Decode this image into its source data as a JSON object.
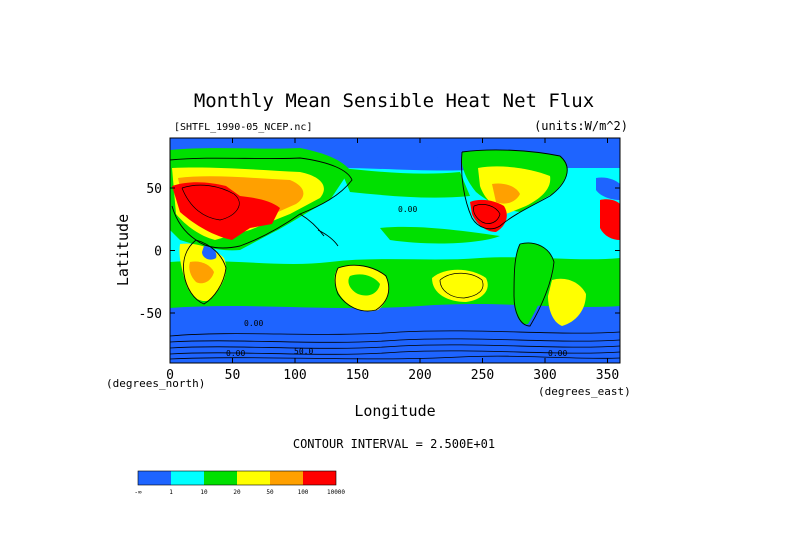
{
  "chart_data": {
    "type": "heatmap",
    "title": "Monthly Mean Sensible Heat Net Flux",
    "subtitle_left": "[SHTFL_1990-05_NCEP.nc]",
    "subtitle_right": "(units:W/m^2)",
    "xlabel": "Longitude",
    "ylabel": "Latitude",
    "x_unit_note": "(degrees_east)",
    "y_unit_note": "(degrees_north)",
    "xlim": [
      0,
      360
    ],
    "ylim": [
      -90,
      90
    ],
    "x_ticks": [
      "0",
      "50",
      "100",
      "150",
      "200",
      "250",
      "300",
      "350"
    ],
    "x_tick_values": [
      0,
      50,
      100,
      150,
      200,
      250,
      300,
      350
    ],
    "y_ticks": [
      "50",
      "0",
      "-50"
    ],
    "y_tick_values": [
      50,
      0,
      -50
    ],
    "contour_interval": "CONTOUR INTERVAL = 2.500E+01",
    "legend": {
      "colors": [
        "#1e64ff",
        "#00ffff",
        "#00e000",
        "#ffff00",
        "#ffa000",
        "#ff0000"
      ],
      "labels": [
        "-∞",
        "1",
        "10",
        "20",
        "50",
        "100",
        "10000"
      ]
    },
    "contour_labels": [
      "0.00",
      "0.00",
      "0.00",
      "0.00",
      "50.0"
    ]
  }
}
